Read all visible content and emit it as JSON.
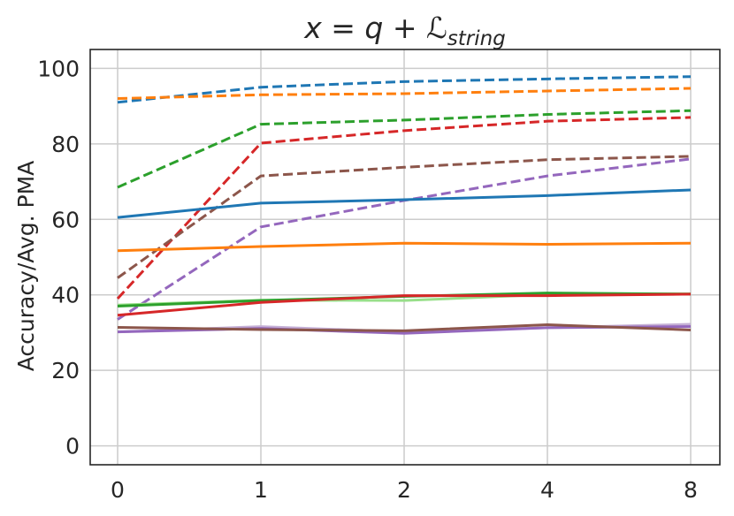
{
  "chart_data": {
    "type": "line",
    "title": "x = q + ℒ",
    "title_subscript": "string",
    "xlabel": "",
    "ylabel": "Accuracy/Avg. PMA",
    "categories": [
      "0",
      "1",
      "2",
      "4",
      "8"
    ],
    "ylim": [
      -5,
      105
    ],
    "yticks": [
      0,
      20,
      40,
      60,
      80,
      100
    ],
    "grid": true,
    "series": [
      {
        "color": "#1f77b4",
        "style": "dashed",
        "values": [
          91,
          95,
          96.5,
          97.2,
          97.8
        ]
      },
      {
        "color": "#ff7f0e",
        "style": "dashed",
        "values": [
          92,
          93,
          93.3,
          94,
          94.7
        ]
      },
      {
        "color": "#2ca02c",
        "style": "dashed",
        "values": [
          68.5,
          85.2,
          86.3,
          87.8,
          88.8
        ]
      },
      {
        "color": "#d62728",
        "style": "dashed",
        "values": [
          39,
          80.2,
          83.5,
          86,
          87
        ]
      },
      {
        "color": "#8c564b",
        "style": "dashed",
        "values": [
          44.5,
          71.5,
          73.8,
          75.8,
          76.7
        ]
      },
      {
        "color": "#9467bd",
        "style": "dashed",
        "values": [
          33.5,
          58,
          65,
          71.5,
          76
        ]
      },
      {
        "color": "#1f77b4",
        "style": "solid",
        "values": [
          60.5,
          64.3,
          65.2,
          66.3,
          67.8
        ]
      },
      {
        "color": "#ff7f0e",
        "style": "solid",
        "values": [
          51.7,
          52.8,
          53.7,
          53.4,
          53.7
        ]
      },
      {
        "color": "#98df8a",
        "style": "solid",
        "values": [
          37.3,
          38.6,
          38.5,
          40.1,
          40.3
        ]
      },
      {
        "color": "#2ca02c",
        "style": "solid",
        "values": [
          37,
          38.5,
          39.6,
          40.5,
          40.2
        ]
      },
      {
        "color": "#d62728",
        "style": "solid",
        "values": [
          34.6,
          38,
          39.8,
          39.8,
          40.2
        ]
      },
      {
        "color": "#c5b0d5",
        "style": "solid",
        "values": [
          30.2,
          31.6,
          30.2,
          31.3,
          32.2
        ]
      },
      {
        "color": "#9467bd",
        "style": "solid",
        "values": [
          30.2,
          31.1,
          29.8,
          31.3,
          31.6
        ]
      },
      {
        "color": "#8c564b",
        "style": "solid",
        "values": [
          31.4,
          30.8,
          30.5,
          32.1,
          30.7
        ]
      }
    ]
  }
}
